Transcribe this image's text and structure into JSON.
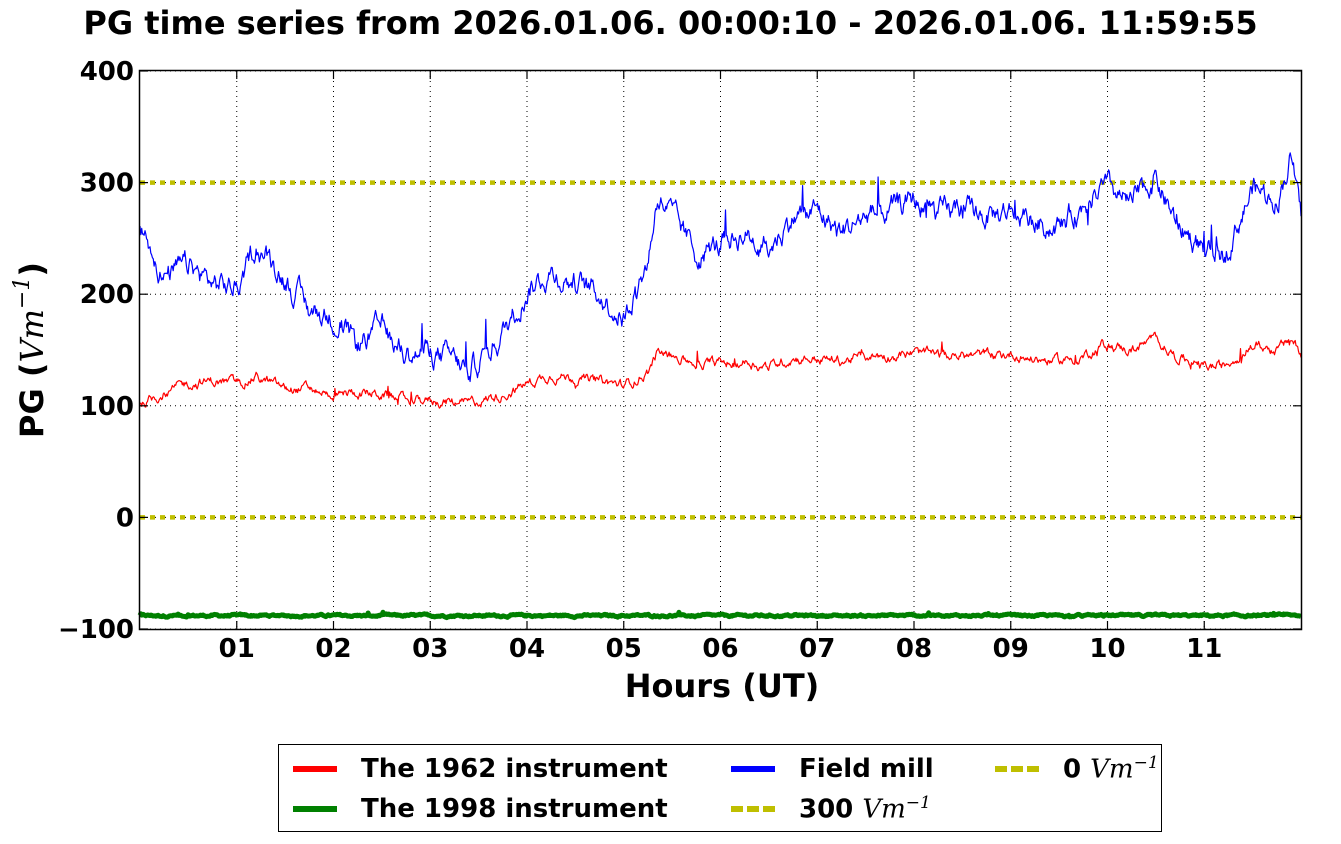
{
  "chart_data": {
    "type": "line",
    "title": "PG time series from 2026.01.06. 00:00:10 - 2026.01.06. 11:59:55",
    "xlabel": "Hours (UT)",
    "ylabel": "PG (",
    "ylabel_math": "Vm",
    "ylabel_sup": "−1",
    "ylabel_close": ")",
    "xlim": [
      0,
      12
    ],
    "ylim": [
      -100,
      400
    ],
    "x_ticks": [
      "01",
      "02",
      "03",
      "04",
      "05",
      "06",
      "07",
      "08",
      "09",
      "10",
      "11"
    ],
    "y_ticks": [
      "400",
      "300",
      "200",
      "100",
      "0",
      "−100"
    ],
    "grid": true,
    "legend_placement": "bottom-center",
    "x": [
      0.0,
      0.25,
      0.5,
      0.75,
      1.0,
      1.2,
      1.5,
      1.75,
      2.0,
      2.25,
      2.5,
      2.75,
      3.0,
      3.25,
      3.4,
      3.75,
      4.0,
      4.25,
      4.5,
      4.75,
      5.0,
      5.25,
      5.35,
      5.5,
      5.75,
      6.0,
      6.25,
      6.5,
      6.75,
      7.0,
      7.25,
      7.5,
      7.75,
      8.0,
      8.25,
      8.5,
      8.75,
      9.0,
      9.25,
      9.5,
      9.75,
      9.95,
      10.25,
      10.5,
      10.7,
      11.0,
      11.2,
      11.5,
      11.75,
      11.9,
      12.0
    ],
    "series": [
      {
        "name": "Field mill",
        "color": "#0000ff",
        "values": [
          265,
          215,
          225,
          210,
          205,
          245,
          215,
          185,
          180,
          155,
          170,
          145,
          150,
          140,
          130,
          165,
          205,
          220,
          210,
          200,
          180,
          230,
          290,
          270,
          235,
          245,
          255,
          240,
          270,
          275,
          255,
          270,
          275,
          285,
          270,
          275,
          270,
          275,
          265,
          260,
          280,
          295,
          280,
          305,
          265,
          240,
          235,
          295,
          285,
          325,
          265
        ],
        "width": 1.2,
        "noise": 14
      },
      {
        "name": "The 1962 instrument",
        "color": "#ff0000",
        "values": [
          100,
          112,
          120,
          122,
          120,
          126,
          115,
          115,
          110,
          112,
          110,
          105,
          105,
          103,
          102,
          110,
          120,
          128,
          125,
          122,
          118,
          130,
          148,
          145,
          138,
          138,
          140,
          135,
          143,
          142,
          140,
          145,
          145,
          147,
          145,
          145,
          146,
          146,
          142,
          140,
          145,
          155,
          150,
          160,
          145,
          135,
          135,
          155,
          150,
          158,
          148
        ],
        "width": 1.2,
        "noise": 6
      },
      {
        "name": "The 1998 instrument",
        "color": "#008000",
        "values": [
          -88,
          -88,
          -88,
          -88,
          -88,
          -88,
          -88,
          -88,
          -88,
          -88,
          -88,
          -88,
          -88,
          -88,
          -88,
          -88,
          -88,
          -88,
          -88,
          -88,
          -88,
          -88,
          -88,
          -88,
          -88,
          -88,
          -88,
          -88,
          -88,
          -88,
          -88,
          -88,
          -88,
          -88,
          -88,
          -88,
          -88,
          -88,
          -88,
          -88,
          -88,
          -88,
          -88,
          -88,
          -88,
          -88,
          -88,
          -88,
          -88,
          -88,
          -88
        ],
        "width": 5,
        "noise": 1.2
      }
    ],
    "reference_lines": [
      {
        "name": "300 Vm⁻¹",
        "value": 300,
        "color": "#bfbf00"
      },
      {
        "name": "0 Vm⁻¹",
        "value": 0,
        "color": "#bfbf00"
      }
    ],
    "legend": [
      {
        "label": "The 1962 instrument",
        "math": "",
        "color": "#ff0000",
        "style": "solid"
      },
      {
        "label": "The 1998 instrument",
        "math": "",
        "color": "#008000",
        "style": "solid"
      },
      {
        "label": "Field mill",
        "math": "",
        "color": "#0000ff",
        "style": "solid"
      },
      {
        "label": "300 ",
        "math": "Vm",
        "sup": "−1",
        "color": "#bfbf00",
        "style": "dotted"
      },
      {
        "label": "0 ",
        "math": "Vm",
        "sup": "−1",
        "color": "#bfbf00",
        "style": "dotted"
      }
    ]
  }
}
